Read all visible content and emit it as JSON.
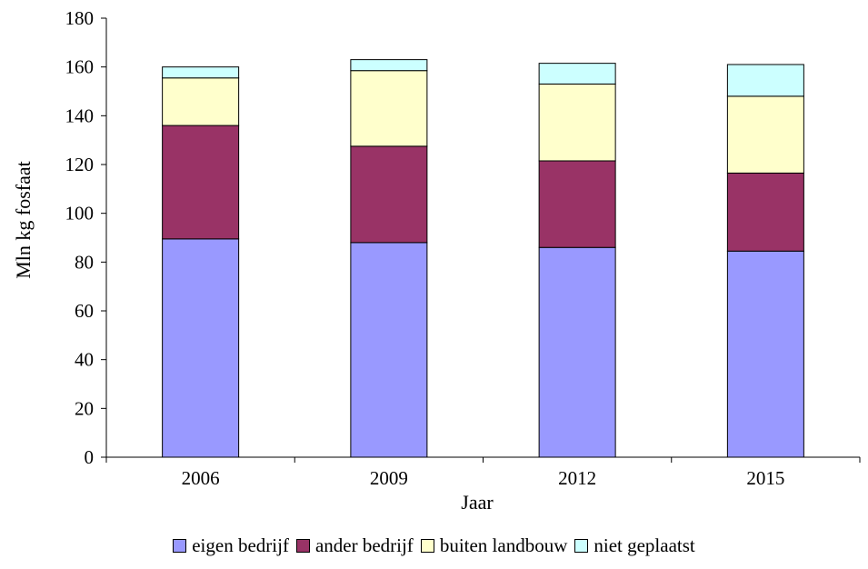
{
  "chart_data": {
    "type": "bar",
    "stacked": true,
    "title": "",
    "xlabel": "Jaar",
    "ylabel": "Mln kg fosfaat",
    "ylim": [
      0,
      180
    ],
    "yticks": [
      "0",
      "20",
      "40",
      "60",
      "80",
      "100",
      "120",
      "140",
      "160",
      "180"
    ],
    "categories": [
      "2006",
      "2009",
      "2012",
      "2015"
    ],
    "series": [
      {
        "name": "eigen bedrijf",
        "color": "#9999ff",
        "values": [
          89.5,
          88,
          86,
          84.5
        ]
      },
      {
        "name": "ander bedrijf",
        "color": "#993366",
        "values": [
          46.5,
          39.5,
          35.5,
          32
        ]
      },
      {
        "name": "buiten landbouw",
        "color": "#ffffcc",
        "values": [
          19.5,
          31,
          31.5,
          31.5
        ]
      },
      {
        "name": "niet geplaatst",
        "color": "#ccffff",
        "values": [
          4.5,
          4.5,
          8.5,
          13
        ]
      }
    ],
    "grid": false,
    "legend_position": "bottom"
  }
}
